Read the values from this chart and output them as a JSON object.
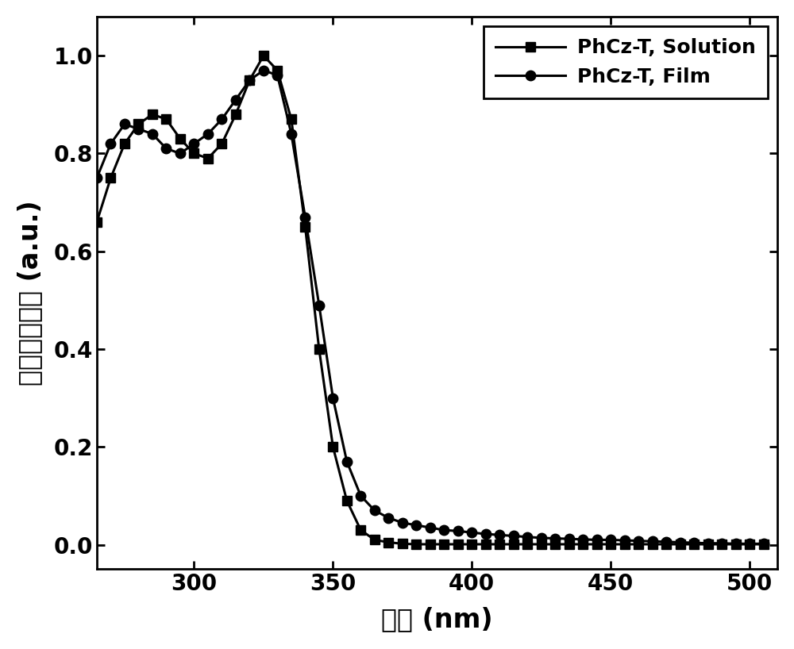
{
  "solution_x": [
    265,
    270,
    275,
    280,
    285,
    290,
    295,
    300,
    305,
    310,
    315,
    320,
    325,
    330,
    335,
    340,
    345,
    350,
    355,
    360,
    365,
    370,
    375,
    380,
    385,
    390,
    395,
    400,
    405,
    410,
    415,
    420,
    425,
    430,
    435,
    440,
    445,
    450,
    455,
    460,
    465,
    470,
    475,
    480,
    485,
    490,
    495,
    500,
    505
  ],
  "solution_y": [
    0.66,
    0.75,
    0.82,
    0.86,
    0.88,
    0.87,
    0.83,
    0.8,
    0.79,
    0.82,
    0.88,
    0.95,
    1.0,
    0.97,
    0.87,
    0.65,
    0.4,
    0.2,
    0.09,
    0.03,
    0.01,
    0.005,
    0.002,
    0.001,
    0.001,
    0.001,
    0.001,
    0.001,
    0.001,
    0.001,
    0.001,
    0.001,
    0.001,
    0.001,
    0.001,
    0.001,
    0.001,
    0.001,
    0.001,
    0.001,
    0.001,
    0.001,
    0.001,
    0.001,
    0.001,
    0.001,
    0.001,
    0.001,
    0.001
  ],
  "film_x": [
    265,
    270,
    275,
    280,
    285,
    290,
    295,
    300,
    305,
    310,
    315,
    320,
    325,
    330,
    335,
    340,
    345,
    350,
    355,
    360,
    365,
    370,
    375,
    380,
    385,
    390,
    395,
    400,
    405,
    410,
    415,
    420,
    425,
    430,
    435,
    440,
    445,
    450,
    455,
    460,
    465,
    470,
    475,
    480,
    485,
    490,
    495,
    500,
    505
  ],
  "film_y": [
    0.75,
    0.82,
    0.86,
    0.85,
    0.84,
    0.81,
    0.8,
    0.82,
    0.84,
    0.87,
    0.91,
    0.95,
    0.97,
    0.96,
    0.84,
    0.67,
    0.49,
    0.3,
    0.17,
    0.1,
    0.07,
    0.055,
    0.045,
    0.04,
    0.035,
    0.03,
    0.028,
    0.025,
    0.022,
    0.02,
    0.018,
    0.016,
    0.014,
    0.013,
    0.012,
    0.011,
    0.01,
    0.01,
    0.009,
    0.008,
    0.007,
    0.006,
    0.005,
    0.004,
    0.003,
    0.003,
    0.002,
    0.002,
    0.002
  ],
  "xlabel_chinese": "波长",
  "xlabel_latin": " (nm)",
  "ylabel_chinese": "归一化吸光度",
  "ylabel_latin": " (a.u.)",
  "xlim": [
    265,
    510
  ],
  "ylim": [
    -0.05,
    1.08
  ],
  "xticks": [
    300,
    350,
    400,
    450,
    500
  ],
  "yticks": [
    0.0,
    0.2,
    0.4,
    0.6,
    0.8,
    1.0
  ],
  "legend_solution": "PhCz-T, Solution",
  "legend_film": "PhCz-T, Film",
  "line_color": "#000000",
  "marker_solution": "s",
  "marker_film": "o",
  "marker_size": 9,
  "linewidth": 2.2,
  "background_color": "#ffffff",
  "tick_fontsize": 20,
  "label_fontsize": 24,
  "legend_fontsize": 18
}
